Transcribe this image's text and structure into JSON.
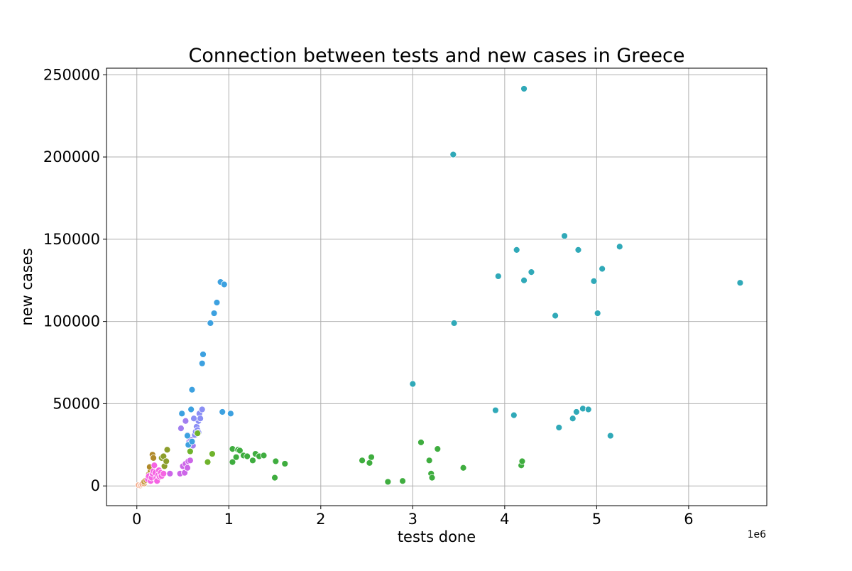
{
  "chart_data": {
    "type": "scatter",
    "title": "Connection between tests and new cases in Greece",
    "xlabel": "tests done",
    "ylabel": "new cases",
    "x_offset_label": "1e6",
    "xlim": [
      -0.33,
      6.85
    ],
    "ylim": [
      -12000,
      254000
    ],
    "x_ticks": [
      0,
      1,
      2,
      3,
      4,
      5,
      6
    ],
    "x_tick_labels": [
      "0",
      "1",
      "2",
      "3",
      "4",
      "5",
      "6"
    ],
    "y_ticks": [
      0,
      50000,
      100000,
      150000,
      200000,
      250000
    ],
    "y_tick_labels": [
      "0",
      "50000",
      "100000",
      "150000",
      "200000",
      "250000"
    ],
    "grid": true,
    "legend": "none",
    "points": [
      {
        "x": 0.02,
        "y": 500,
        "color": "#f4a582"
      },
      {
        "x": 0.04,
        "y": 300,
        "color": "#f4a582"
      },
      {
        "x": 0.05,
        "y": 800,
        "color": "#f4a582"
      },
      {
        "x": 0.06,
        "y": 1200,
        "color": "#f4a582"
      },
      {
        "x": 0.08,
        "y": 1500,
        "color": "#e2a46e"
      },
      {
        "x": 0.08,
        "y": 2500,
        "color": "#c99a43"
      },
      {
        "x": 0.1,
        "y": 3500,
        "color": "#c99a43"
      },
      {
        "x": 0.12,
        "y": 5000,
        "color": "#b08a2a"
      },
      {
        "x": 0.13,
        "y": 7000,
        "color": "#b08a2a"
      },
      {
        "x": 0.15,
        "y": 9000,
        "color": "#b08a2a"
      },
      {
        "x": 0.14,
        "y": 11500,
        "color": "#b08a2a"
      },
      {
        "x": 0.17,
        "y": 19000,
        "color": "#b08a2a"
      },
      {
        "x": 0.18,
        "y": 17000,
        "color": "#b08a2a"
      },
      {
        "x": 0.12,
        "y": 4000,
        "color": "#f564e3"
      },
      {
        "x": 0.13,
        "y": 6000,
        "color": "#f564e3"
      },
      {
        "x": 0.15,
        "y": 3000,
        "color": "#f564e3"
      },
      {
        "x": 0.16,
        "y": 5000,
        "color": "#f564e3"
      },
      {
        "x": 0.17,
        "y": 7500,
        "color": "#f564e3"
      },
      {
        "x": 0.18,
        "y": 9000,
        "color": "#f564e3"
      },
      {
        "x": 0.19,
        "y": 12500,
        "color": "#f564e3"
      },
      {
        "x": 0.2,
        "y": 8000,
        "color": "#f564e3"
      },
      {
        "x": 0.21,
        "y": 4500,
        "color": "#f564e3"
      },
      {
        "x": 0.22,
        "y": 3000,
        "color": "#f564e3"
      },
      {
        "x": 0.23,
        "y": 6500,
        "color": "#f564e3"
      },
      {
        "x": 0.24,
        "y": 9500,
        "color": "#f564e3"
      },
      {
        "x": 0.25,
        "y": 5500,
        "color": "#f564e3"
      },
      {
        "x": 0.26,
        "y": 8000,
        "color": "#f564e3"
      },
      {
        "x": 0.27,
        "y": 6000,
        "color": "#f564e3"
      },
      {
        "x": 0.29,
        "y": 7500,
        "color": "#f564e3"
      },
      {
        "x": 0.27,
        "y": 17000,
        "color": "#8c9e2b"
      },
      {
        "x": 0.29,
        "y": 18000,
        "color": "#8c9e2b"
      },
      {
        "x": 0.3,
        "y": 12000,
        "color": "#8c9e2b"
      },
      {
        "x": 0.32,
        "y": 15000,
        "color": "#8c9e2b"
      },
      {
        "x": 0.33,
        "y": 22000,
        "color": "#8c9e2b"
      },
      {
        "x": 0.36,
        "y": 7500,
        "color": "#cc66e8"
      },
      {
        "x": 0.47,
        "y": 7500,
        "color": "#cc66e8"
      },
      {
        "x": 0.5,
        "y": 12000,
        "color": "#cc66e8"
      },
      {
        "x": 0.52,
        "y": 8000,
        "color": "#cc66e8"
      },
      {
        "x": 0.53,
        "y": 13500,
        "color": "#cc66e8"
      },
      {
        "x": 0.55,
        "y": 11000,
        "color": "#cc66e8"
      },
      {
        "x": 0.56,
        "y": 15000,
        "color": "#cc66e8"
      },
      {
        "x": 0.58,
        "y": 15500,
        "color": "#cc66e8"
      },
      {
        "x": 0.48,
        "y": 35000,
        "color": "#a27ff0"
      },
      {
        "x": 0.53,
        "y": 39500,
        "color": "#a27ff0"
      },
      {
        "x": 0.55,
        "y": 31000,
        "color": "#a27ff0"
      },
      {
        "x": 0.57,
        "y": 27000,
        "color": "#a27ff0"
      },
      {
        "x": 0.59,
        "y": 28000,
        "color": "#a27ff0"
      },
      {
        "x": 0.61,
        "y": 24500,
        "color": "#a27ff0"
      },
      {
        "x": 0.63,
        "y": 31000,
        "color": "#8b8ff5"
      },
      {
        "x": 0.64,
        "y": 33000,
        "color": "#8b8ff5"
      },
      {
        "x": 0.65,
        "y": 36000,
        "color": "#8b8ff5"
      },
      {
        "x": 0.66,
        "y": 34000,
        "color": "#8b8ff5"
      },
      {
        "x": 0.67,
        "y": 39500,
        "color": "#8b8ff5"
      },
      {
        "x": 0.68,
        "y": 44000,
        "color": "#8b8ff5"
      },
      {
        "x": 0.69,
        "y": 41000,
        "color": "#8b8ff5"
      },
      {
        "x": 0.71,
        "y": 46500,
        "color": "#8b8ff5"
      },
      {
        "x": 0.62,
        "y": 41000,
        "color": "#8b8ff5"
      },
      {
        "x": 0.67,
        "y": 32500,
        "color": "#8b8ff5"
      },
      {
        "x": 0.49,
        "y": 44000,
        "color": "#3da1e0"
      },
      {
        "x": 0.55,
        "y": 30500,
        "color": "#3da1e0"
      },
      {
        "x": 0.56,
        "y": 25000,
        "color": "#3da1e0"
      },
      {
        "x": 0.6,
        "y": 27000,
        "color": "#3da1e0"
      },
      {
        "x": 0.59,
        "y": 46500,
        "color": "#3da1e0"
      },
      {
        "x": 0.6,
        "y": 58500,
        "color": "#3da1e0"
      },
      {
        "x": 0.71,
        "y": 74500,
        "color": "#3da1e0"
      },
      {
        "x": 0.72,
        "y": 80000,
        "color": "#3da1e0"
      },
      {
        "x": 0.8,
        "y": 99000,
        "color": "#3da1e0"
      },
      {
        "x": 0.84,
        "y": 105000,
        "color": "#3da1e0"
      },
      {
        "x": 0.87,
        "y": 111500,
        "color": "#3da1e0"
      },
      {
        "x": 0.91,
        "y": 124000,
        "color": "#3da1e0"
      },
      {
        "x": 0.95,
        "y": 122500,
        "color": "#3da1e0"
      },
      {
        "x": 0.93,
        "y": 45000,
        "color": "#3da1e0"
      },
      {
        "x": 1.02,
        "y": 44000,
        "color": "#3da1e0"
      },
      {
        "x": 0.58,
        "y": 21000,
        "color": "#6fb32c"
      },
      {
        "x": 0.66,
        "y": 32000,
        "color": "#6fb32c"
      },
      {
        "x": 0.77,
        "y": 14500,
        "color": "#6fb32c"
      },
      {
        "x": 0.82,
        "y": 19500,
        "color": "#6fb32c"
      },
      {
        "x": 1.04,
        "y": 22500,
        "color": "#3fad3f"
      },
      {
        "x": 1.04,
        "y": 14500,
        "color": "#3fad3f"
      },
      {
        "x": 1.08,
        "y": 17500,
        "color": "#3fad3f"
      },
      {
        "x": 1.1,
        "y": 22000,
        "color": "#3fad3f"
      },
      {
        "x": 1.12,
        "y": 21500,
        "color": "#3fad3f"
      },
      {
        "x": 1.16,
        "y": 18500,
        "color": "#3fad3f"
      },
      {
        "x": 1.2,
        "y": 18000,
        "color": "#3fad3f"
      },
      {
        "x": 1.26,
        "y": 15500,
        "color": "#3fad3f"
      },
      {
        "x": 1.29,
        "y": 19500,
        "color": "#3fad3f"
      },
      {
        "x": 1.33,
        "y": 18000,
        "color": "#3fad3f"
      },
      {
        "x": 1.38,
        "y": 18500,
        "color": "#3fad3f"
      },
      {
        "x": 1.5,
        "y": 5000,
        "color": "#3fad3f"
      },
      {
        "x": 1.51,
        "y": 15000,
        "color": "#3fad3f"
      },
      {
        "x": 1.61,
        "y": 13500,
        "color": "#3fad3f"
      },
      {
        "x": 2.45,
        "y": 15500,
        "color": "#3fad3f"
      },
      {
        "x": 2.53,
        "y": 14000,
        "color": "#3fad3f"
      },
      {
        "x": 2.55,
        "y": 17500,
        "color": "#3fad3f"
      },
      {
        "x": 2.73,
        "y": 2500,
        "color": "#3fad3f"
      },
      {
        "x": 2.89,
        "y": 3000,
        "color": "#3fad3f"
      },
      {
        "x": 3.09,
        "y": 26500,
        "color": "#3fad3f"
      },
      {
        "x": 3.18,
        "y": 15500,
        "color": "#3fad3f"
      },
      {
        "x": 3.2,
        "y": 7500,
        "color": "#3fad3f"
      },
      {
        "x": 3.21,
        "y": 5000,
        "color": "#3fad3f"
      },
      {
        "x": 3.27,
        "y": 22500,
        "color": "#3fad3f"
      },
      {
        "x": 3.55,
        "y": 11000,
        "color": "#3fad3f"
      },
      {
        "x": 4.18,
        "y": 12500,
        "color": "#3fad3f"
      },
      {
        "x": 4.19,
        "y": 15000,
        "color": "#3fad3f"
      },
      {
        "x": 3.0,
        "y": 62000,
        "color": "#30a9b8"
      },
      {
        "x": 3.44,
        "y": 201500,
        "color": "#30a9b8"
      },
      {
        "x": 3.45,
        "y": 99000,
        "color": "#30a9b8"
      },
      {
        "x": 3.9,
        "y": 46000,
        "color": "#30a9b8"
      },
      {
        "x": 3.93,
        "y": 127500,
        "color": "#30a9b8"
      },
      {
        "x": 4.1,
        "y": 43000,
        "color": "#30a9b8"
      },
      {
        "x": 4.13,
        "y": 143500,
        "color": "#30a9b8"
      },
      {
        "x": 4.21,
        "y": 241500,
        "color": "#30a9b8"
      },
      {
        "x": 4.21,
        "y": 125000,
        "color": "#30a9b8"
      },
      {
        "x": 4.29,
        "y": 130000,
        "color": "#30a9b8"
      },
      {
        "x": 4.55,
        "y": 103500,
        "color": "#30a9b8"
      },
      {
        "x": 4.59,
        "y": 35500,
        "color": "#30a9b8"
      },
      {
        "x": 4.65,
        "y": 152000,
        "color": "#30a9b8"
      },
      {
        "x": 4.74,
        "y": 41000,
        "color": "#30a9b8"
      },
      {
        "x": 4.78,
        "y": 45000,
        "color": "#30a9b8"
      },
      {
        "x": 4.8,
        "y": 143500,
        "color": "#30a9b8"
      },
      {
        "x": 4.85,
        "y": 47000,
        "color": "#30a9b8"
      },
      {
        "x": 4.91,
        "y": 46500,
        "color": "#30a9b8"
      },
      {
        "x": 4.97,
        "y": 124500,
        "color": "#30a9b8"
      },
      {
        "x": 5.01,
        "y": 105000,
        "color": "#30a9b8"
      },
      {
        "x": 5.06,
        "y": 132000,
        "color": "#30a9b8"
      },
      {
        "x": 5.15,
        "y": 30500,
        "color": "#30a9b8"
      },
      {
        "x": 5.25,
        "y": 145500,
        "color": "#30a9b8"
      },
      {
        "x": 6.56,
        "y": 123500,
        "color": "#30a9b8"
      }
    ]
  }
}
